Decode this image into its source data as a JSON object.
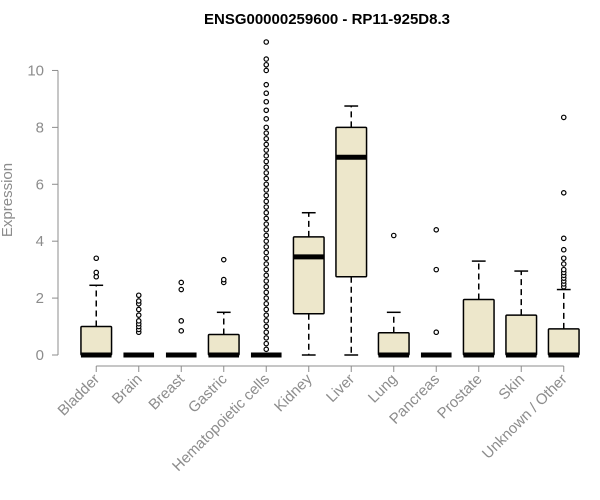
{
  "chart_data": {
    "type": "box",
    "title": "ENSG00000259600 - RP11-925D8.3",
    "xlabel": "",
    "ylabel": "Expression",
    "ylim": [
      0,
      11
    ],
    "yticks": [
      0,
      2,
      4,
      6,
      8,
      10
    ],
    "colors": {
      "box_fill": "#ede7cb",
      "stroke": "#000000",
      "axis": "#8c8c8c"
    },
    "categories": [
      "Bladder",
      "Brain",
      "Breast",
      "Gastric",
      "Hematopoietic cells",
      "Kidney",
      "Liver",
      "Lung",
      "Pancreas",
      "Prostate",
      "Skin",
      "Unknown / Other"
    ],
    "boxes": [
      {
        "q1": 0,
        "median": 0,
        "q3": 1.0,
        "whisker_low": 0,
        "whisker_high": 2.45,
        "outliers": [
          2.75,
          2.9,
          3.4
        ]
      },
      {
        "q1": 0,
        "median": 0,
        "q3": 0,
        "whisker_low": 0,
        "whisker_high": 0,
        "outliers": [
          0.8,
          0.9,
          1.0,
          1.1,
          1.2,
          1.4,
          1.6,
          1.8,
          1.9,
          2.1
        ]
      },
      {
        "q1": 0,
        "median": 0,
        "q3": 0,
        "whisker_low": 0,
        "whisker_high": 0,
        "outliers": [
          0.85,
          1.2,
          2.3,
          2.55
        ]
      },
      {
        "q1": 0,
        "median": 0,
        "q3": 0.72,
        "whisker_low": 0,
        "whisker_high": 1.5,
        "outliers": [
          2.55,
          2.65,
          3.35
        ]
      },
      {
        "q1": 0,
        "median": 0,
        "q3": 0,
        "whisker_low": 0,
        "whisker_high": 0,
        "outliers": [
          0.2,
          0.4,
          0.6,
          0.8,
          1.0,
          1.2,
          1.4,
          1.6,
          1.8,
          2.0,
          2.2,
          2.4,
          2.6,
          2.8,
          3.0,
          3.2,
          3.4,
          3.6,
          3.8,
          4.0,
          4.2,
          4.4,
          4.6,
          4.8,
          5.0,
          5.2,
          5.4,
          5.6,
          5.8,
          6.0,
          6.2,
          6.4,
          6.6,
          6.8,
          7.0,
          7.2,
          7.4,
          7.6,
          7.8,
          8.0,
          8.3,
          8.6,
          8.9,
          9.2,
          9.5,
          10.0,
          10.2,
          10.4,
          11.0
        ]
      },
      {
        "q1": 1.45,
        "median": 3.45,
        "q3": 4.15,
        "whisker_low": 0,
        "whisker_high": 5.0,
        "outliers": []
      },
      {
        "q1": 2.75,
        "median": 6.95,
        "q3": 8.0,
        "whisker_low": 0,
        "whisker_high": 8.75,
        "outliers": []
      },
      {
        "q1": 0,
        "median": 0,
        "q3": 0.78,
        "whisker_low": 0,
        "whisker_high": 1.5,
        "outliers": [
          4.2
        ]
      },
      {
        "q1": 0,
        "median": 0,
        "q3": 0,
        "whisker_low": 0,
        "whisker_high": 0,
        "outliers": [
          0.8,
          3.0,
          4.4
        ]
      },
      {
        "q1": 0,
        "median": 0,
        "q3": 1.95,
        "whisker_low": 0,
        "whisker_high": 3.3,
        "outliers": []
      },
      {
        "q1": 0,
        "median": 0,
        "q3": 1.4,
        "whisker_low": 0,
        "whisker_high": 2.95,
        "outliers": []
      },
      {
        "q1": 0,
        "median": 0,
        "q3": 0.92,
        "whisker_low": 0,
        "whisker_high": 2.3,
        "outliers": [
          2.4,
          2.5,
          2.6,
          2.7,
          2.8,
          2.9,
          3.0,
          3.2,
          3.4,
          3.7,
          4.1,
          5.7,
          8.35
        ]
      }
    ]
  }
}
